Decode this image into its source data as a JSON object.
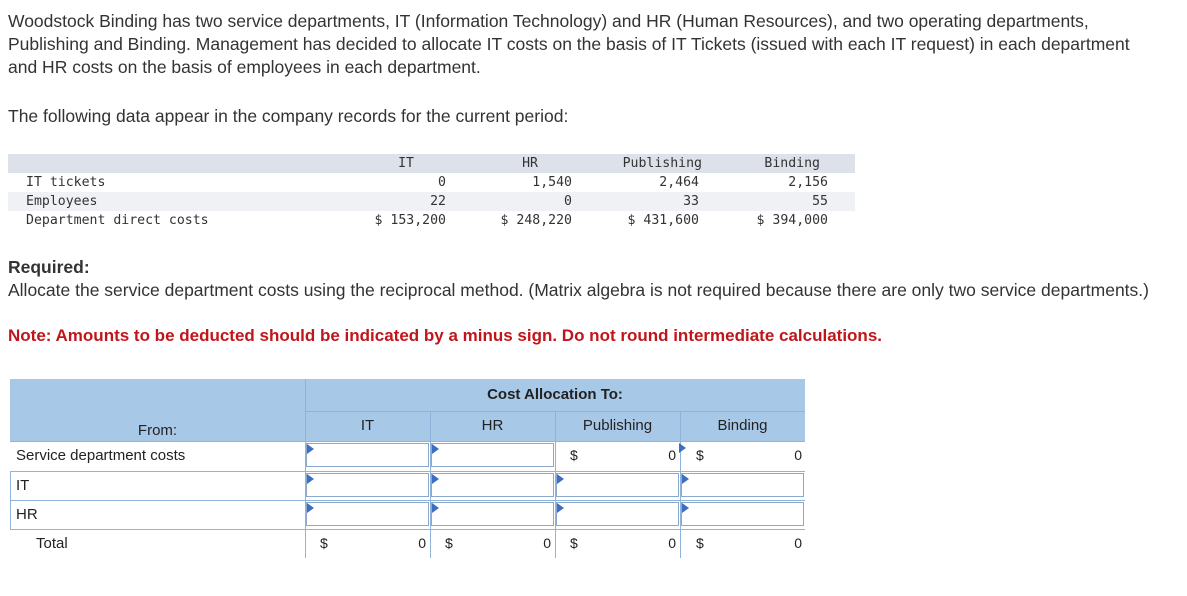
{
  "intro": "Woodstock Binding has two service departments, IT (Information Technology) and HR (Human Resources), and two operating departments, Publishing and Binding. Management has decided to allocate IT costs on the basis of IT Tickets (issued with each IT request) in each department and HR costs on the basis of employees in each department.",
  "lead": "The following data appear in the company records for the current period:",
  "data_table": {
    "headers": [
      "IT",
      "HR",
      "Publishing",
      "Binding"
    ],
    "rows": [
      {
        "label": "IT tickets",
        "values": [
          "0",
          "1,540",
          "2,464",
          "2,156"
        ]
      },
      {
        "label": "Employees",
        "values": [
          "22",
          "0",
          "33",
          "55"
        ]
      },
      {
        "label": "Department direct costs",
        "values": [
          "$ 153,200",
          "$ 248,220",
          "$ 431,600",
          "$ 394,000"
        ]
      }
    ]
  },
  "required": {
    "heading": "Required:",
    "text": "Allocate the service department costs using the reciprocal method. (Matrix algebra is not required because there are only two service departments.)",
    "note": "Note: Amounts to be deducted should be indicated by a minus sign. Do not round intermediate calculations."
  },
  "alloc": {
    "group_header": "Cost Allocation To:",
    "from_label": "From:",
    "columns": [
      "IT",
      "HR",
      "Publishing",
      "Binding"
    ],
    "rows": [
      "Service department costs",
      "IT",
      "HR"
    ],
    "total_label": "Total",
    "currency": "$",
    "zero": "0"
  }
}
